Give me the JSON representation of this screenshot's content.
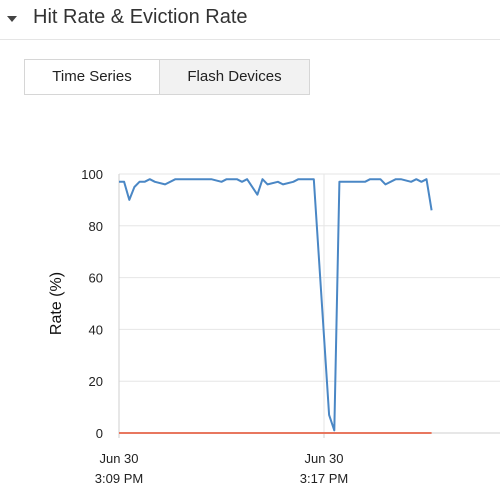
{
  "section": {
    "title": "Hit Rate & Eviction Rate",
    "toggle_icon": "caret-down-icon"
  },
  "tabs": [
    {
      "label": "Time Series",
      "active": true
    },
    {
      "label": "Flash Devices",
      "active": false
    }
  ],
  "chart_data": {
    "type": "line",
    "title": "",
    "xlabel": "",
    "ylabel": "Rate (%)",
    "ylim": [
      0,
      100
    ],
    "y_ticks": [
      0,
      20,
      40,
      60,
      80,
      100
    ],
    "x_ticks": [
      {
        "date": "Jun 30",
        "time": "3:09 PM"
      },
      {
        "date": "Jun 30",
        "time": "3:17 PM"
      }
    ],
    "grid": true,
    "colors": {
      "hit": "#4a87c5",
      "eviction": "#e8775f"
    },
    "series": [
      {
        "key": "hit",
        "x": [
          "3:09:00 PM",
          "3:09:12 PM",
          "3:09:24 PM",
          "3:09:36 PM",
          "3:09:48 PM",
          "3:10:00 PM",
          "3:10:12 PM",
          "3:10:24 PM",
          "3:10:48 PM",
          "3:11:12 PM",
          "3:11:36 PM",
          "3:12:00 PM",
          "3:12:12 PM",
          "3:12:36 PM",
          "3:13:00 PM",
          "3:13:12 PM",
          "3:13:36 PM",
          "3:13:48 PM",
          "3:14:00 PM",
          "3:14:24 PM",
          "3:14:36 PM",
          "3:14:48 PM",
          "3:15:12 PM",
          "3:15:24 PM",
          "3:15:48 PM",
          "3:16:00 PM",
          "3:16:36 PM",
          "3:17:12 PM",
          "3:17:24 PM",
          "3:17:36 PM",
          "3:17:48 PM",
          "3:18:12 PM",
          "3:18:36 PM",
          "3:18:48 PM",
          "3:19:12 PM",
          "3:19:24 PM",
          "3:19:48 PM",
          "3:20:00 PM",
          "3:20:24 PM",
          "3:20:36 PM",
          "3:20:48 PM",
          "3:21:00 PM",
          "3:21:12 PM"
        ],
        "values": [
          97,
          97,
          90,
          95,
          97,
          97,
          98,
          97,
          96,
          98,
          98,
          98,
          98,
          98,
          97,
          98,
          98,
          97,
          98,
          92,
          98,
          96,
          97,
          96,
          97,
          98,
          98,
          7,
          1,
          97,
          97,
          97,
          97,
          98,
          98,
          96,
          98,
          98,
          97,
          98,
          97,
          98,
          86
        ]
      },
      {
        "key": "eviction",
        "x": [
          "3:09:00 PM",
          "3:21:12 PM"
        ],
        "values": [
          0,
          0
        ]
      }
    ]
  }
}
